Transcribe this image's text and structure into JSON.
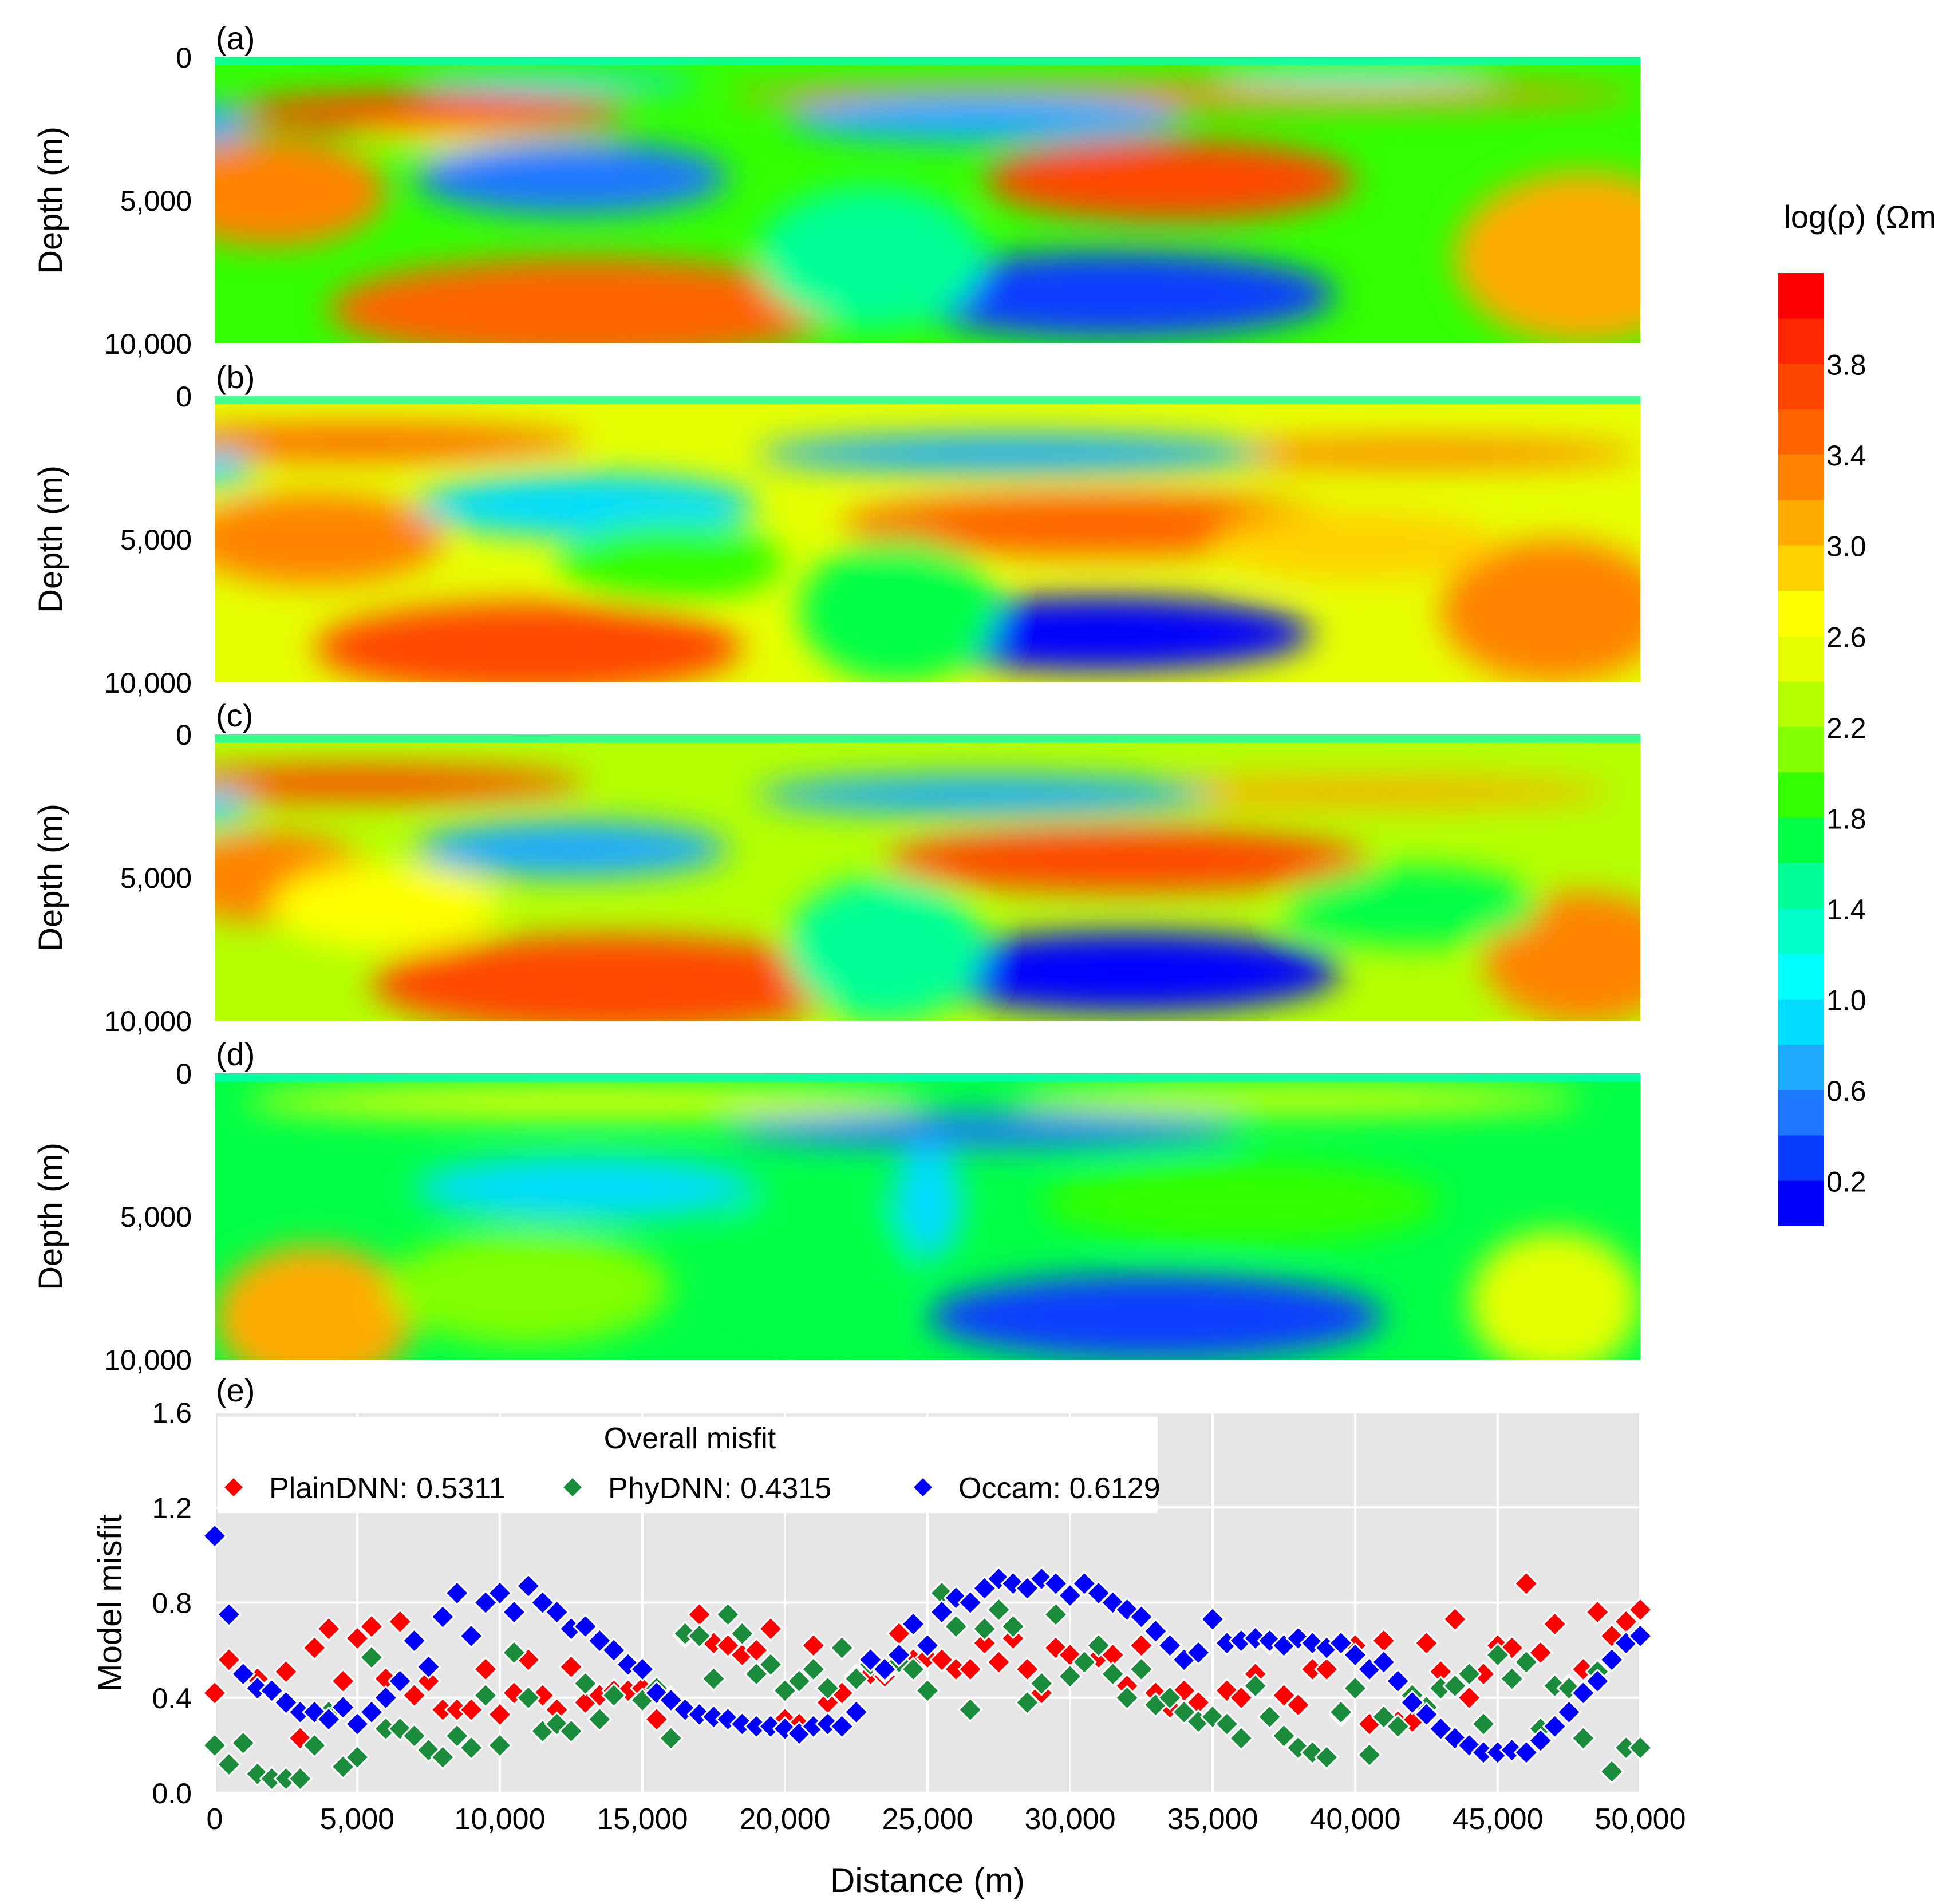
{
  "chart_data": {
    "panels": [
      {
        "label": "(a)",
        "type": "heatmap",
        "ylabel": "Depth (m)",
        "yticks": [
          "0",
          "5,000",
          "10,000"
        ],
        "ylim": [
          0,
          10000
        ],
        "xlim": [
          0,
          50000
        ]
      },
      {
        "label": "(b)",
        "type": "heatmap",
        "ylabel": "Depth (m)",
        "yticks": [
          "0",
          "5,000",
          "10,000"
        ],
        "ylim": [
          0,
          10000
        ],
        "xlim": [
          0,
          50000
        ]
      },
      {
        "label": "(c)",
        "type": "heatmap",
        "ylabel": "Depth (m)",
        "yticks": [
          "0",
          "5,000",
          "10,000"
        ],
        "ylim": [
          0,
          10000
        ],
        "xlim": [
          0,
          50000
        ]
      },
      {
        "label": "(d)",
        "type": "heatmap",
        "ylabel": "Depth (m)",
        "yticks": [
          "0",
          "5,000",
          "10,000"
        ],
        "ylim": [
          0,
          10000
        ],
        "xlim": [
          0,
          50000
        ]
      }
    ],
    "colorbar": {
      "title": "log(ρ) (Ωm)",
      "range": [
        0,
        4.2
      ],
      "tick_values": [
        0.2,
        0.6,
        1.0,
        1.4,
        1.8,
        2.2,
        2.6,
        3.0,
        3.4,
        3.8
      ],
      "tick_labels": [
        "0.2",
        "0.6",
        "1.0",
        "1.4",
        "1.8",
        "2.2",
        "2.6",
        "3.0",
        "3.4",
        "3.8"
      ],
      "colors": [
        "#0000ff",
        "#0a3cff",
        "#1e78ff",
        "#1eaaff",
        "#00dcff",
        "#00ffff",
        "#00ffc8",
        "#00ff96",
        "#00ff46",
        "#32ff00",
        "#82ff00",
        "#b4ff00",
        "#e6ff00",
        "#ffff00",
        "#ffd200",
        "#ffaa00",
        "#ff8200",
        "#ff6400",
        "#ff4600",
        "#ff2800",
        "#ff0000"
      ]
    },
    "misfit": {
      "label": "(e)",
      "type": "scatter",
      "xlabel": "Distance (m)",
      "ylabel": "Model misfit",
      "xlim": [
        0,
        50000
      ],
      "ylim": [
        0,
        1.6
      ],
      "xticks": [
        "0",
        "5,000",
        "10,000",
        "15,000",
        "20,000",
        "25,000",
        "30,000",
        "35,000",
        "40,000",
        "45,000",
        "50,000"
      ],
      "yticks": [
        "0.0",
        "0.4",
        "0.8",
        "1.2",
        "1.6"
      ],
      "legend_title": "Overall misfit",
      "legend_position": "top-left",
      "x": [
        0,
        500,
        1000,
        1500,
        2000,
        2500,
        3000,
        3500,
        4000,
        4500,
        5000,
        5500,
        6000,
        6500,
        7000,
        7500,
        8000,
        8500,
        9000,
        9500,
        10000,
        10500,
        11000,
        11500,
        12000,
        12500,
        13000,
        13500,
        14000,
        14500,
        15000,
        15500,
        16000,
        16500,
        17000,
        17500,
        18000,
        18500,
        19000,
        19500,
        20000,
        20500,
        21000,
        21500,
        22000,
        22500,
        23000,
        23500,
        24000,
        24500,
        25000,
        25500,
        26000,
        26500,
        27000,
        27500,
        28000,
        28500,
        29000,
        29500,
        30000,
        30500,
        31000,
        31500,
        32000,
        32500,
        33000,
        33500,
        34000,
        34500,
        35000,
        35500,
        36000,
        36500,
        37000,
        37500,
        38000,
        38500,
        39000,
        39500,
        40000,
        40500,
        41000,
        41500,
        42000,
        42500,
        43000,
        43500,
        44000,
        44500,
        45000,
        45500,
        46000,
        46500,
        47000,
        47500,
        48000,
        48500,
        49000,
        49500,
        50000
      ],
      "series": [
        {
          "name": "PlainDNN",
          "overall": "0.5311",
          "legend_text": "PlainDNN: 0.5311",
          "color": "#ff0000",
          "values": [
            0.42,
            0.56,
            0.5,
            0.48,
            0.43,
            0.51,
            0.23,
            0.61,
            0.69,
            0.47,
            0.65,
            0.7,
            0.48,
            0.72,
            0.41,
            0.47,
            0.35,
            0.35,
            0.35,
            0.52,
            0.33,
            0.42,
            0.56,
            0.41,
            0.35,
            0.53,
            0.38,
            0.41,
            0.43,
            0.43,
            0.44,
            0.31,
            0.4,
            0.66,
            0.75,
            0.63,
            0.62,
            0.58,
            0.6,
            0.69,
            0.31,
            0.29,
            0.62,
            0.38,
            0.42,
            0.49,
            0.5,
            0.49,
            0.67,
            0.56,
            0.57,
            0.56,
            0.52,
            0.52,
            0.63,
            0.55,
            0.65,
            0.52,
            0.42,
            0.61,
            0.58,
            0.55,
            0.57,
            0.58,
            0.45,
            0.62,
            0.42,
            0.36,
            0.43,
            0.38,
            0.32,
            0.43,
            0.4,
            0.5,
            0.63,
            0.41,
            0.37,
            0.52,
            0.52,
            0.33,
            0.62,
            0.29,
            0.64,
            0.3,
            0.3,
            0.63,
            0.51,
            0.73,
            0.4,
            0.5,
            0.62,
            0.61,
            0.88,
            0.59,
            0.71,
            0.45,
            0.52,
            0.76,
            0.66,
            0.72,
            0.77
          ]
        },
        {
          "name": "PhyDNN",
          "overall": "0.4315",
          "legend_text": "PhyDNN: 0.4315",
          "color": "#1a8c3c",
          "values": [
            0.2,
            0.12,
            0.21,
            0.08,
            0.06,
            0.06,
            0.06,
            0.2,
            0.34,
            0.11,
            0.15,
            0.57,
            0.27,
            0.27,
            0.24,
            0.18,
            0.15,
            0.24,
            0.19,
            0.41,
            0.2,
            0.59,
            0.4,
            0.26,
            0.29,
            0.26,
            0.46,
            0.31,
            0.41,
            0.54,
            0.39,
            0.44,
            0.23,
            0.67,
            0.66,
            0.48,
            0.75,
            0.67,
            0.5,
            0.54,
            0.43,
            0.47,
            0.52,
            0.44,
            0.61,
            0.48,
            0.54,
            0.51,
            0.55,
            0.52,
            0.43,
            0.84,
            0.7,
            0.35,
            0.69,
            0.77,
            0.7,
            0.38,
            0.46,
            0.75,
            0.49,
            0.55,
            0.62,
            0.5,
            0.4,
            0.52,
            0.37,
            0.4,
            0.34,
            0.3,
            0.32,
            0.29,
            0.23,
            0.45,
            0.32,
            0.24,
            0.19,
            0.17,
            0.15,
            0.34,
            0.44,
            0.16,
            0.32,
            0.28,
            0.41,
            0.36,
            0.44,
            0.45,
            0.5,
            0.29,
            0.58,
            0.48,
            0.55,
            0.27,
            0.45,
            0.44,
            0.23,
            0.51,
            0.09,
            0.19,
            0.19
          ]
        },
        {
          "name": "Occam",
          "overall": "0.6129",
          "legend_text": "Occam: 0.6129",
          "color": "#0000ff",
          "values": [
            1.08,
            0.75,
            0.5,
            0.44,
            0.43,
            0.38,
            0.34,
            0.34,
            0.31,
            0.36,
            0.29,
            0.34,
            0.4,
            0.47,
            0.64,
            0.53,
            0.74,
            0.84,
            0.66,
            0.8,
            0.84,
            0.76,
            0.87,
            0.8,
            0.76,
            0.69,
            0.7,
            0.64,
            0.6,
            0.54,
            0.52,
            0.42,
            0.39,
            0.35,
            0.33,
            0.32,
            0.31,
            0.29,
            0.28,
            0.28,
            0.27,
            0.25,
            0.28,
            0.29,
            0.28,
            0.34,
            0.56,
            0.52,
            0.58,
            0.71,
            0.62,
            0.76,
            0.82,
            0.8,
            0.86,
            0.9,
            0.88,
            0.86,
            0.9,
            0.88,
            0.83,
            0.88,
            0.84,
            0.8,
            0.77,
            0.74,
            0.68,
            0.62,
            0.56,
            0.59,
            0.73,
            0.63,
            0.64,
            0.65,
            0.64,
            0.62,
            0.65,
            0.63,
            0.61,
            0.63,
            0.58,
            0.52,
            0.55,
            0.47,
            0.38,
            0.33,
            0.27,
            0.23,
            0.2,
            0.17,
            0.17,
            0.18,
            0.17,
            0.22,
            0.28,
            0.34,
            0.42,
            0.47,
            0.56,
            0.63,
            0.66
          ]
        }
      ]
    }
  }
}
